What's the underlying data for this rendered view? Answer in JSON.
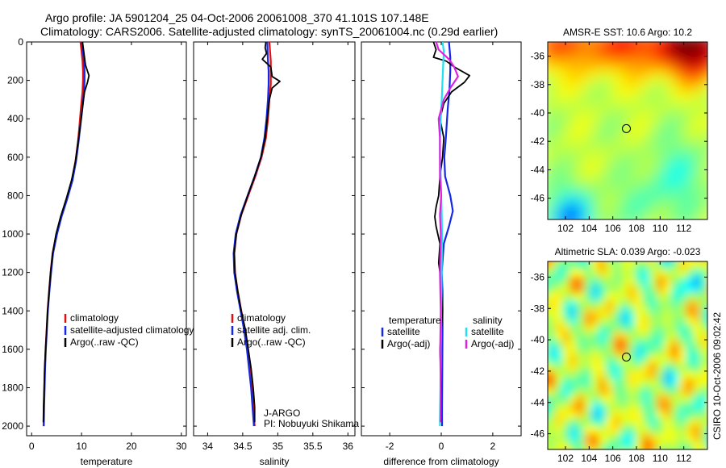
{
  "title_line1": "Argo profile: JA 5901204_25 04-Oct-2006 20061008_370 41.101S 107.148E",
  "title_line2": "Climatology: CARS2006. Satellite-adjusted climatology: synTS_20061004.nc (0.29d earlier)",
  "side_label": "CSIRO 10-Oct-2006 09:02:42",
  "colors": {
    "climatology": "#e01010",
    "satellite": "#1428e6",
    "argo": "#000000",
    "satellite_diff": "#20e0f0",
    "argo_diff": "#e020e0"
  },
  "chart_data": [
    {
      "type": "line",
      "xlabel": "temperature",
      "xlim": [
        -1,
        31
      ],
      "ylim": [
        0,
        2050
      ],
      "y_inverted": true,
      "xticks": [
        0,
        10,
        20,
        30
      ],
      "yticks": [
        0,
        200,
        400,
        600,
        800,
        1000,
        1200,
        1400,
        1600,
        1800,
        2000
      ],
      "legend": [
        "climatology",
        "satellite-adjusted climatology",
        "Argo(..raw -QC)"
      ],
      "series": [
        {
          "name": "climatology",
          "role": "climatology",
          "points": [
            [
              9.8,
              0
            ],
            [
              10.0,
              50
            ],
            [
              10.2,
              100
            ],
            [
              10.3,
              150
            ],
            [
              10.3,
              200
            ],
            [
              10.2,
              260
            ],
            [
              9.9,
              340
            ],
            [
              9.6,
              430
            ],
            [
              9.3,
              520
            ],
            [
              8.8,
              620
            ],
            [
              8.1,
              720
            ],
            [
              7.0,
              820
            ],
            [
              5.9,
              910
            ],
            [
              5.0,
              1000
            ],
            [
              4.2,
              1100
            ],
            [
              3.8,
              1200
            ],
            [
              3.5,
              1300
            ],
            [
              3.2,
              1400
            ],
            [
              3.0,
              1500
            ],
            [
              2.8,
              1600
            ],
            [
              2.65,
              1700
            ],
            [
              2.55,
              1800
            ],
            [
              2.45,
              1900
            ],
            [
              2.4,
              2000
            ]
          ]
        },
        {
          "name": "satellite-adjusted climatology",
          "role": "satellite",
          "points": [
            [
              10.1,
              0
            ],
            [
              10.3,
              50
            ],
            [
              10.5,
              100
            ],
            [
              10.6,
              150
            ],
            [
              10.6,
              200
            ],
            [
              10.5,
              260
            ],
            [
              10.2,
              340
            ],
            [
              9.8,
              430
            ],
            [
              9.4,
              520
            ],
            [
              8.9,
              620
            ],
            [
              8.2,
              720
            ],
            [
              7.1,
              820
            ],
            [
              6.0,
              910
            ],
            [
              5.1,
              1000
            ],
            [
              4.3,
              1100
            ],
            [
              3.9,
              1200
            ],
            [
              3.55,
              1300
            ],
            [
              3.25,
              1400
            ],
            [
              3.05,
              1500
            ],
            [
              2.85,
              1600
            ],
            [
              2.7,
              1700
            ],
            [
              2.6,
              1800
            ],
            [
              2.5,
              1900
            ],
            [
              2.45,
              2000
            ]
          ]
        },
        {
          "name": "Argo(..raw -QC)",
          "role": "argo",
          "points": [
            [
              10.2,
              0
            ],
            [
              10.4,
              40
            ],
            [
              10.8,
              120
            ],
            [
              11.5,
              175
            ],
            [
              11.2,
              210
            ],
            [
              10.6,
              260
            ],
            [
              10.2,
              340
            ],
            [
              9.8,
              430
            ],
            [
              9.3,
              520
            ],
            [
              8.8,
              620
            ],
            [
              8.0,
              720
            ],
            [
              6.9,
              820
            ],
            [
              5.8,
              910
            ],
            [
              4.9,
              1000
            ],
            [
              4.2,
              1100
            ],
            [
              3.8,
              1200
            ],
            [
              3.5,
              1300
            ],
            [
              3.2,
              1400
            ],
            [
              3.0,
              1500
            ],
            [
              2.8,
              1600
            ],
            [
              2.6,
              1700
            ],
            [
              2.5,
              1800
            ],
            [
              2.4,
              1900
            ],
            [
              2.35,
              1980
            ]
          ]
        }
      ]
    },
    {
      "type": "line",
      "xlabel": "salinity",
      "xlim": [
        33.8,
        36.1
      ],
      "ylim": [
        0,
        2050
      ],
      "y_inverted": true,
      "xticks": [
        34,
        34.5,
        35,
        35.5,
        36
      ],
      "xticklabels": [
        "34",
        "34.5",
        "35",
        "35.5",
        "36"
      ],
      "legend": [
        "climatology",
        "satellite adj. clim.",
        "Argo(..raw -QC)"
      ],
      "annotation": [
        "J-ARGO",
        "PI: Nobuyuki Shikama"
      ],
      "series": [
        {
          "name": "climatology",
          "role": "climatology",
          "points": [
            [
              34.88,
              0
            ],
            [
              34.9,
              100
            ],
            [
              34.9,
              150
            ],
            [
              34.9,
              220
            ],
            [
              34.88,
              300
            ],
            [
              34.86,
              400
            ],
            [
              34.83,
              500
            ],
            [
              34.77,
              600
            ],
            [
              34.68,
              700
            ],
            [
              34.58,
              800
            ],
            [
              34.48,
              900
            ],
            [
              34.41,
              1000
            ],
            [
              34.38,
              1100
            ],
            [
              34.39,
              1200
            ],
            [
              34.43,
              1300
            ],
            [
              34.48,
              1400
            ],
            [
              34.53,
              1500
            ],
            [
              34.57,
              1600
            ],
            [
              34.6,
              1700
            ],
            [
              34.63,
              1800
            ],
            [
              34.65,
              1900
            ],
            [
              34.67,
              2000
            ]
          ]
        },
        {
          "name": "satellite adj. clim.",
          "role": "satellite",
          "points": [
            [
              34.85,
              0
            ],
            [
              34.86,
              100
            ],
            [
              34.87,
              150
            ],
            [
              34.87,
              220
            ],
            [
              34.86,
              300
            ],
            [
              34.84,
              400
            ],
            [
              34.81,
              500
            ],
            [
              34.76,
              600
            ],
            [
              34.67,
              700
            ],
            [
              34.57,
              800
            ],
            [
              34.47,
              900
            ],
            [
              34.4,
              1000
            ],
            [
              34.37,
              1100
            ],
            [
              34.38,
              1200
            ],
            [
              34.42,
              1300
            ],
            [
              34.47,
              1400
            ],
            [
              34.52,
              1500
            ],
            [
              34.56,
              1600
            ],
            [
              34.59,
              1700
            ],
            [
              34.62,
              1800
            ],
            [
              34.64,
              1900
            ],
            [
              34.66,
              2000
            ]
          ]
        },
        {
          "name": "Argo(..raw -QC)",
          "role": "argo",
          "points": [
            [
              34.83,
              0
            ],
            [
              34.82,
              30
            ],
            [
              34.84,
              60
            ],
            [
              34.78,
              90
            ],
            [
              34.9,
              130
            ],
            [
              34.92,
              180
            ],
            [
              35.03,
              205
            ],
            [
              34.92,
              240
            ],
            [
              34.88,
              300
            ],
            [
              34.85,
              400
            ],
            [
              34.82,
              500
            ],
            [
              34.76,
              600
            ],
            [
              34.67,
              700
            ],
            [
              34.57,
              800
            ],
            [
              34.48,
              900
            ],
            [
              34.41,
              1000
            ],
            [
              34.38,
              1100
            ],
            [
              34.39,
              1200
            ],
            [
              34.43,
              1300
            ],
            [
              34.48,
              1400
            ],
            [
              34.54,
              1500
            ],
            [
              34.58,
              1600
            ],
            [
              34.62,
              1700
            ],
            [
              34.65,
              1800
            ],
            [
              34.67,
              1900
            ],
            [
              34.67,
              1980
            ]
          ]
        }
      ]
    },
    {
      "type": "line",
      "xlabel": "difference from climatology",
      "xlim": [
        -3.1,
        3.1
      ],
      "ylim": [
        0,
        2050
      ],
      "y_inverted": true,
      "xticks": [
        -2,
        0,
        2
      ],
      "legend_groups": [
        {
          "title": "temperature",
          "items": [
            {
              "label": "satellite",
              "role": "satellite"
            },
            {
              "label": "Argo(-adj)",
              "role": "argo"
            }
          ]
        },
        {
          "title": "salinity",
          "items": [
            {
              "label": "satellite",
              "role": "satellite_diff"
            },
            {
              "label": "Argo(-adj)",
              "role": "argo_diff"
            }
          ]
        }
      ],
      "series": [
        {
          "name": "temperature satellite",
          "role": "satellite",
          "points": [
            [
              0.3,
              0
            ],
            [
              0.35,
              80
            ],
            [
              0.35,
              150
            ],
            [
              0.32,
              250
            ],
            [
              0.25,
              350
            ],
            [
              0.18,
              500
            ],
            [
              0.12,
              600
            ],
            [
              0.15,
              700
            ],
            [
              0.35,
              800
            ],
            [
              0.45,
              880
            ],
            [
              0.3,
              960
            ],
            [
              0.1,
              1050
            ],
            [
              0.02,
              1200
            ],
            [
              0.05,
              1300
            ],
            [
              0.05,
              1500
            ],
            [
              0.04,
              1700
            ],
            [
              0.03,
              1900
            ],
            [
              0.03,
              2000
            ]
          ]
        },
        {
          "name": "temperature Argo(-adj)",
          "role": "argo",
          "points": [
            [
              -0.3,
              0
            ],
            [
              -0.2,
              40
            ],
            [
              -0.3,
              80
            ],
            [
              0.2,
              100
            ],
            [
              0.5,
              130
            ],
            [
              1.1,
              175
            ],
            [
              0.9,
              210
            ],
            [
              0.4,
              260
            ],
            [
              0.1,
              320
            ],
            [
              -0.05,
              400
            ],
            [
              0.1,
              500
            ],
            [
              0.05,
              600
            ],
            [
              -0.05,
              700
            ],
            [
              -0.1,
              800
            ],
            [
              -0.2,
              860
            ],
            [
              -0.25,
              910
            ],
            [
              -0.2,
              960
            ],
            [
              -0.05,
              1050
            ],
            [
              -0.1,
              1150
            ],
            [
              0,
              1250
            ],
            [
              0.05,
              1400
            ],
            [
              -0.05,
              1600
            ],
            [
              0,
              1800
            ],
            [
              -0.05,
              1980
            ]
          ]
        },
        {
          "name": "salinity satellite",
          "role": "satellite_diff",
          "points": [
            [
              0.05,
              0
            ],
            [
              0.1,
              50
            ],
            [
              0.08,
              100
            ],
            [
              0.05,
              200
            ],
            [
              0.02,
              300
            ],
            [
              -0.02,
              400
            ],
            [
              -0.05,
              500
            ],
            [
              -0.05,
              600
            ],
            [
              -0.02,
              700
            ],
            [
              0,
              800
            ],
            [
              0.02,
              900
            ],
            [
              0.03,
              1000
            ],
            [
              0.02,
              1200
            ],
            [
              0,
              1400
            ],
            [
              -0.02,
              1600
            ],
            [
              -0.03,
              1800
            ],
            [
              -0.05,
              2000
            ]
          ]
        },
        {
          "name": "salinity Argo(-adj)",
          "role": "argo_diff",
          "points": [
            [
              -0.2,
              0
            ],
            [
              -0.1,
              40
            ],
            [
              0.3,
              90
            ],
            [
              0.5,
              130
            ],
            [
              0.65,
              180
            ],
            [
              0.5,
              210
            ],
            [
              0.35,
              240
            ],
            [
              0.1,
              300
            ],
            [
              -0.1,
              400
            ],
            [
              -0.05,
              500
            ],
            [
              -0.05,
              600
            ],
            [
              -0.05,
              700
            ],
            [
              0,
              800
            ],
            [
              -0.05,
              900
            ],
            [
              -0.02,
              1000
            ],
            [
              -0.05,
              1200
            ],
            [
              -0.02,
              1400
            ],
            [
              -0.04,
              1600
            ],
            [
              -0.02,
              1800
            ],
            [
              -0.03,
              1980
            ]
          ]
        }
      ]
    },
    {
      "type": "heatmap",
      "title": "AMSR-E SST: 10.6 Argo: 10.2",
      "xlim": [
        100.5,
        114
      ],
      "ylim": [
        -47.5,
        -35
      ],
      "xticks": [
        102,
        104,
        106,
        108,
        110,
        112
      ],
      "yticks": [
        -36,
        -38,
        -40,
        -42,
        -44,
        -46
      ],
      "marker": [
        107.148,
        -41.101
      ],
      "colormap": "jet"
    },
    {
      "type": "heatmap",
      "title": "Altimetric SLA: 0.039 Argo: -0.023",
      "xlim": [
        100.5,
        114
      ],
      "ylim": [
        -47,
        -35
      ],
      "xticks": [
        102,
        104,
        106,
        108,
        110,
        112
      ],
      "yticks": [
        -36,
        -38,
        -40,
        -42,
        -44,
        -46
      ],
      "marker": [
        107.148,
        -41.101
      ],
      "colormap": "jet"
    }
  ]
}
